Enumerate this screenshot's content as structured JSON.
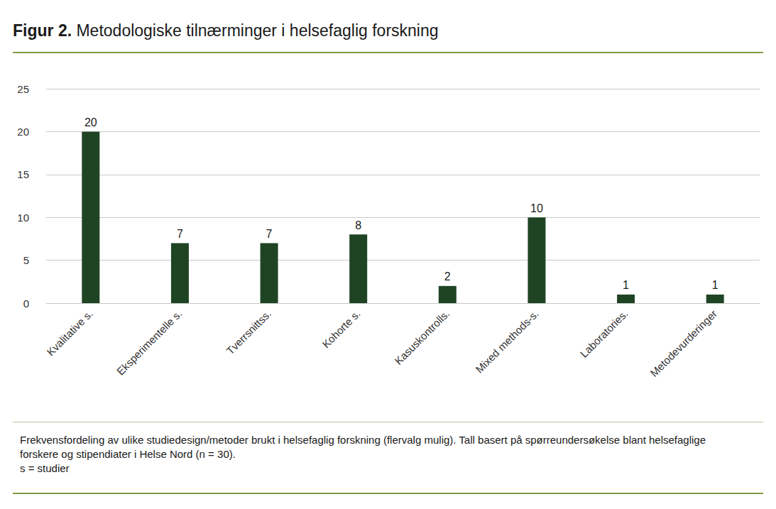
{
  "chart_data": {
    "type": "bar",
    "figure_label": "Figur 2.",
    "title": "Metodologiske tilnærminger i helsefaglig forskning",
    "categories": [
      "Kvalitative s.",
      "Eksperimentelle s.",
      "Tverrsnittss.",
      "Kohorte s.",
      "Kasuskontrolls.",
      "Mixed methods-s.",
      "Laboratories.",
      "Metodevurderinger"
    ],
    "values": [
      20,
      7,
      7,
      8,
      2,
      10,
      1,
      1
    ],
    "color": "#1f4424",
    "ylim": [
      0,
      25
    ],
    "yticks": [
      0,
      5,
      10,
      15,
      20,
      25
    ],
    "grid": true,
    "data_labels": true,
    "caption": [
      "Frekvensfordeling av ulike studiedesign/metoder brukt i helsefaglig forskning (flervalg mulig). Tall basert på spørreundersøkelse blant helsefaglige forskere og stipendiater i Helse Nord (n = 30).",
      "s = studier"
    ]
  }
}
